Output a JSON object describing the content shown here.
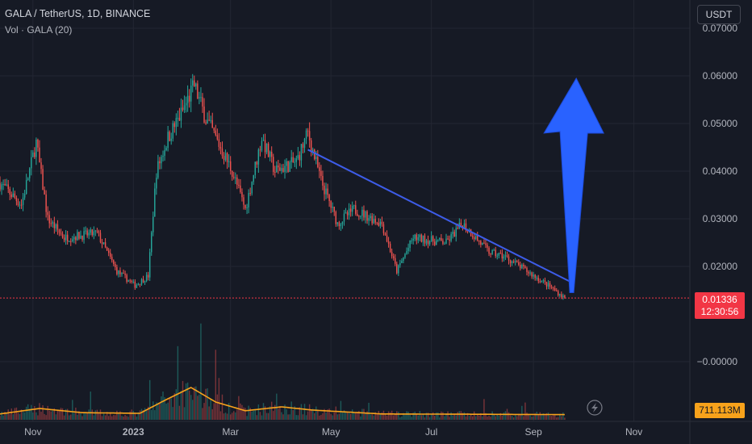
{
  "header": {
    "symbol_line": "GALA / TetherUS, 1D, BINANCE",
    "indicator_line": "Vol · GALA (20)"
  },
  "currency_button": "USDT",
  "price_badge": {
    "price": "0.01336",
    "countdown": "12:30:56"
  },
  "volume_badge": "711.113M",
  "colors": {
    "background": "#161a25",
    "up": "#26a69a",
    "down": "#ef5350",
    "trendline": "#3d5ce8",
    "arrow": "#2962ff",
    "volume_ma": "#f7a21b",
    "price_line": "#f23645"
  },
  "chart_data": {
    "type": "candlestick",
    "title": "GALA / TetherUS, 1D, BINANCE",
    "y_axis": {
      "ticks": [
        0.07,
        0.06,
        0.05,
        0.04,
        0.03,
        0.02,
        0.0
      ],
      "tick_labels": [
        "0.07000",
        "0.06000",
        "0.05000",
        "0.04000",
        "0.03000",
        "0.02000",
        "−0.00000"
      ],
      "ylim": [
        -0.0,
        0.072
      ]
    },
    "x_axis": {
      "tick_labels": [
        "Nov",
        "2023",
        "Mar",
        "May",
        "Jul",
        "Sep",
        "Nov"
      ],
      "tick_dates": [
        "2022-11-01",
        "2023-01-01",
        "2023-03-01",
        "2023-05-01",
        "2023-07-01",
        "2023-09-01",
        "2023-11-01"
      ],
      "range": [
        "2022-10-12",
        "2023-12-05"
      ]
    },
    "price_anchors": [
      {
        "date": "2022-10-12",
        "price": 0.0375
      },
      {
        "date": "2022-10-25",
        "price": 0.033
      },
      {
        "date": "2022-11-03",
        "price": 0.046
      },
      {
        "date": "2022-11-10",
        "price": 0.03
      },
      {
        "date": "2022-11-20",
        "price": 0.026
      },
      {
        "date": "2022-12-10",
        "price": 0.027
      },
      {
        "date": "2022-12-22",
        "price": 0.019
      },
      {
        "date": "2023-01-02",
        "price": 0.016
      },
      {
        "date": "2023-01-10",
        "price": 0.018
      },
      {
        "date": "2023-01-15",
        "price": 0.04
      },
      {
        "date": "2023-01-22",
        "price": 0.047
      },
      {
        "date": "2023-01-30",
        "price": 0.052
      },
      {
        "date": "2023-02-07",
        "price": 0.058
      },
      {
        "date": "2023-02-14",
        "price": 0.051
      },
      {
        "date": "2023-02-20",
        "price": 0.047
      },
      {
        "date": "2023-03-02",
        "price": 0.04
      },
      {
        "date": "2023-03-10",
        "price": 0.032
      },
      {
        "date": "2023-03-20",
        "price": 0.047
      },
      {
        "date": "2023-03-28",
        "price": 0.04
      },
      {
        "date": "2023-04-10",
        "price": 0.042
      },
      {
        "date": "2023-04-17",
        "price": 0.048
      },
      {
        "date": "2023-04-25",
        "price": 0.038
      },
      {
        "date": "2023-05-05",
        "price": 0.029
      },
      {
        "date": "2023-05-15",
        "price": 0.032
      },
      {
        "date": "2023-06-01",
        "price": 0.029
      },
      {
        "date": "2023-06-10",
        "price": 0.019
      },
      {
        "date": "2023-06-20",
        "price": 0.026
      },
      {
        "date": "2023-07-10",
        "price": 0.025
      },
      {
        "date": "2023-07-20",
        "price": 0.029
      },
      {
        "date": "2023-08-05",
        "price": 0.023
      },
      {
        "date": "2023-08-15",
        "price": 0.022
      },
      {
        "date": "2023-08-28",
        "price": 0.019
      },
      {
        "date": "2023-09-10",
        "price": 0.016
      },
      {
        "date": "2023-09-20",
        "price": 0.01336
      }
    ],
    "volume_ma_anchors": [
      {
        "date": "2022-10-12",
        "value": 0.18
      },
      {
        "date": "2022-11-05",
        "value": 0.35
      },
      {
        "date": "2022-12-01",
        "value": 0.22
      },
      {
        "date": "2023-01-05",
        "value": 0.2
      },
      {
        "date": "2023-01-20",
        "value": 0.6
      },
      {
        "date": "2023-02-05",
        "value": 1.0
      },
      {
        "date": "2023-02-20",
        "value": 0.55
      },
      {
        "date": "2023-03-10",
        "value": 0.28
      },
      {
        "date": "2023-04-01",
        "value": 0.4
      },
      {
        "date": "2023-04-20",
        "value": 0.3
      },
      {
        "date": "2023-06-01",
        "value": 0.18
      },
      {
        "date": "2023-08-01",
        "value": 0.17
      },
      {
        "date": "2023-09-20",
        "value": 0.16
      }
    ],
    "current_price": 0.01336,
    "current_volume": "711.113M",
    "trendline": {
      "start": {
        "date": "2023-04-17",
        "price": 0.0445
      },
      "end": {
        "date": "2023-09-25",
        "price": 0.0165
      }
    },
    "arrow": {
      "direction": "up",
      "tail": {
        "date": "2023-09-24",
        "price": 0.0145
      },
      "head": {
        "date": "2023-09-27",
        "price": 0.0595
      }
    },
    "grid": true
  }
}
